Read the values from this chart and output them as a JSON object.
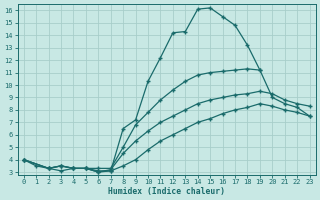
{
  "xlabel": "Humidex (Indice chaleur)",
  "bg_color": "#c8e8e4",
  "grid_color": "#a8ceca",
  "line_color": "#1a6b6b",
  "xlim": [
    -0.5,
    23.5
  ],
  "ylim": [
    2.8,
    16.5
  ],
  "yticks": [
    3,
    4,
    5,
    6,
    7,
    8,
    9,
    10,
    11,
    12,
    13,
    14,
    15,
    16
  ],
  "xticks": [
    0,
    1,
    2,
    3,
    4,
    5,
    6,
    7,
    8,
    9,
    10,
    11,
    12,
    13,
    14,
    15,
    16,
    17,
    18,
    19,
    20,
    21,
    22,
    23
  ],
  "curves": [
    {
      "xy": [
        [
          0,
          4.0
        ],
        [
          1,
          3.5
        ],
        [
          2,
          3.3
        ],
        [
          3,
          3.1
        ],
        [
          4,
          3.3
        ],
        [
          5,
          3.3
        ],
        [
          6,
          3.1
        ],
        [
          7,
          3.1
        ],
        [
          8,
          6.5
        ],
        [
          9,
          7.2
        ],
        [
          10,
          10.3
        ],
        [
          11,
          12.2
        ],
        [
          12,
          14.2
        ],
        [
          13,
          14.3
        ],
        [
          14,
          16.1
        ],
        [
          15,
          16.2
        ],
        [
          16,
          15.5
        ],
        [
          17,
          14.8
        ],
        [
          18,
          13.2
        ],
        [
          19,
          11.2
        ]
      ]
    },
    {
      "xy": [
        [
          0,
          4.0
        ],
        [
          2,
          3.3
        ],
        [
          3,
          3.5
        ],
        [
          4,
          3.3
        ],
        [
          5,
          3.3
        ],
        [
          6,
          3.3
        ],
        [
          7,
          3.3
        ],
        [
          8,
          5.0
        ],
        [
          9,
          6.8
        ],
        [
          10,
          7.8
        ],
        [
          11,
          8.8
        ],
        [
          12,
          9.6
        ],
        [
          13,
          10.3
        ],
        [
          14,
          10.8
        ],
        [
          15,
          11.0
        ],
        [
          16,
          11.1
        ],
        [
          17,
          11.2
        ],
        [
          18,
          11.3
        ],
        [
          19,
          11.2
        ],
        [
          20,
          9.0
        ],
        [
          21,
          8.5
        ],
        [
          22,
          8.2
        ],
        [
          23,
          7.5
        ]
      ]
    },
    {
      "xy": [
        [
          0,
          4.0
        ],
        [
          2,
          3.3
        ],
        [
          3,
          3.5
        ],
        [
          4,
          3.3
        ],
        [
          5,
          3.3
        ],
        [
          6,
          3.0
        ],
        [
          7,
          3.2
        ],
        [
          8,
          4.5
        ],
        [
          9,
          5.5
        ],
        [
          10,
          6.3
        ],
        [
          11,
          7.0
        ],
        [
          12,
          7.5
        ],
        [
          13,
          8.0
        ],
        [
          14,
          8.5
        ],
        [
          15,
          8.8
        ],
        [
          16,
          9.0
        ],
        [
          17,
          9.2
        ],
        [
          18,
          9.3
        ],
        [
          19,
          9.5
        ],
        [
          20,
          9.3
        ],
        [
          21,
          8.8
        ],
        [
          22,
          8.5
        ],
        [
          23,
          8.3
        ]
      ]
    },
    {
      "xy": [
        [
          0,
          4.0
        ],
        [
          2,
          3.3
        ],
        [
          3,
          3.5
        ],
        [
          4,
          3.3
        ],
        [
          5,
          3.3
        ],
        [
          6,
          3.0
        ],
        [
          7,
          3.1
        ],
        [
          8,
          3.5
        ],
        [
          9,
          4.0
        ],
        [
          10,
          4.8
        ],
        [
          11,
          5.5
        ],
        [
          12,
          6.0
        ],
        [
          13,
          6.5
        ],
        [
          14,
          7.0
        ],
        [
          15,
          7.3
        ],
        [
          16,
          7.7
        ],
        [
          17,
          8.0
        ],
        [
          18,
          8.2
        ],
        [
          19,
          8.5
        ],
        [
          20,
          8.3
        ],
        [
          21,
          8.0
        ],
        [
          22,
          7.8
        ],
        [
          23,
          7.5
        ]
      ]
    }
  ]
}
